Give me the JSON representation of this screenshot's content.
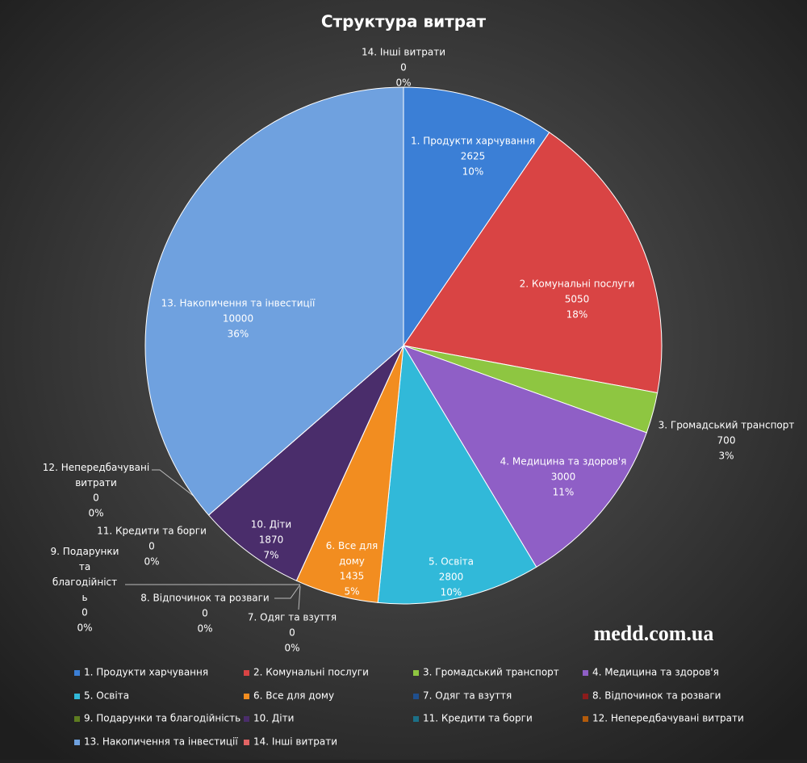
{
  "chart_data": {
    "type": "pie",
    "title": "Структура витрат",
    "categories": [
      "1. Продукти харчування",
      "2. Комунальні послуги",
      "3. Громадський транспорт",
      "4. Медицина та здоров'я",
      "5. Освіта",
      "6. Все для дому",
      "7. Одяг та взуття",
      "8. Відпочинок та розваги",
      "9. Подарунки та благодійність",
      "10. Діти",
      "11. Кредити та борги",
      "12. Непередбачувані витрати",
      "13. Накопичення та інвестиції",
      "14. Інші витрати"
    ],
    "values": [
      2625,
      5050,
      700,
      3000,
      2800,
      1435,
      0,
      0,
      0,
      1870,
      0,
      0,
      10000,
      0
    ],
    "percent_labels": [
      "10%",
      "18%",
      "3%",
      "11%",
      "10%",
      "5%",
      "0%",
      "0%",
      "0%",
      "7%",
      "0%",
      "0%",
      "36%",
      "0%"
    ],
    "colors": [
      "#3b7fd6",
      "#d94444",
      "#8ec641",
      "#8f5fc6",
      "#31b9d9",
      "#f28d20",
      "#1f4f8e",
      "#8c1c1c",
      "#5e7c20",
      "#4a2d6b",
      "#1b7087",
      "#b35b0b",
      "#6fa1df",
      "#e26464"
    ],
    "legend": "bottom",
    "watermark": "medd.com.ua"
  }
}
